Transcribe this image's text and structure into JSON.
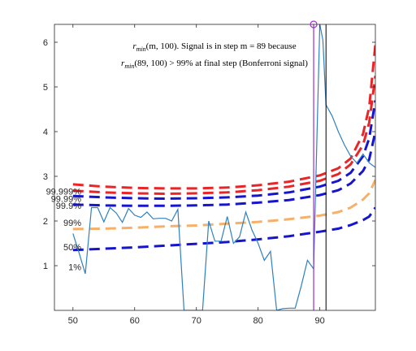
{
  "chart_data": {
    "type": "line",
    "title_lines": [
      [
        "r",
        "min",
        "(m, 100). Signal is in step m = 89 because"
      ],
      [
        "r",
        "min",
        "(89, 100) > 99% at final step (Bonferroni signal)"
      ]
    ],
    "xlim": [
      47,
      99
    ],
    "ylim": [
      0,
      6.4
    ],
    "xticks": [
      50,
      60,
      70,
      80,
      90
    ],
    "yticks": [
      1,
      2,
      3,
      4,
      5,
      6
    ],
    "grid": false,
    "colors": {
      "signal": "#2f80c0",
      "band_red": "#e8262a",
      "band_blue": "#1515d0",
      "band_orange": "#f6b06a",
      "marker": "#9b30d0",
      "vline_black": "#000000"
    },
    "band_labels": [
      {
        "text": "99.999%",
        "y": 2.66
      },
      {
        "text": "99.99%",
        "y": 2.5
      },
      {
        "text": "99.9%",
        "y": 2.35
      },
      {
        "text": "99%",
        "y": 1.96
      },
      {
        "text": "50%",
        "y": 1.42
      },
      {
        "text": "1%",
        "y": 0.97
      }
    ],
    "bands": [
      {
        "color": "band_red",
        "points": [
          [
            50,
            2.82
          ],
          [
            55,
            2.77
          ],
          [
            60,
            2.74
          ],
          [
            65,
            2.73
          ],
          [
            70,
            2.73
          ],
          [
            75,
            2.75
          ],
          [
            80,
            2.8
          ],
          [
            85,
            2.88
          ],
          [
            90,
            3.02
          ],
          [
            93,
            3.18
          ],
          [
            95,
            3.4
          ],
          [
            97,
            3.95
          ],
          [
            98,
            4.55
          ],
          [
            99,
            5.95
          ]
        ]
      },
      {
        "color": "band_red",
        "points": [
          [
            50,
            2.68
          ],
          [
            55,
            2.64
          ],
          [
            60,
            2.62
          ],
          [
            65,
            2.61
          ],
          [
            70,
            2.62
          ],
          [
            75,
            2.64
          ],
          [
            80,
            2.69
          ],
          [
            85,
            2.77
          ],
          [
            90,
            2.9
          ],
          [
            93,
            3.05
          ],
          [
            95,
            3.27
          ],
          [
            97,
            3.7
          ],
          [
            98,
            4.2
          ],
          [
            99,
            5.25
          ]
        ]
      },
      {
        "color": "band_blue",
        "points": [
          [
            50,
            2.56
          ],
          [
            55,
            2.53
          ],
          [
            60,
            2.51
          ],
          [
            65,
            2.5
          ],
          [
            70,
            2.51
          ],
          [
            75,
            2.53
          ],
          [
            80,
            2.57
          ],
          [
            85,
            2.64
          ],
          [
            90,
            2.77
          ],
          [
            93,
            2.9
          ],
          [
            95,
            3.08
          ],
          [
            97,
            3.45
          ],
          [
            98,
            3.85
          ],
          [
            99,
            4.7
          ]
        ]
      },
      {
        "color": "band_blue",
        "points": [
          [
            50,
            2.37
          ],
          [
            55,
            2.35
          ],
          [
            60,
            2.34
          ],
          [
            65,
            2.34
          ],
          [
            70,
            2.35
          ],
          [
            75,
            2.37
          ],
          [
            80,
            2.41
          ],
          [
            85,
            2.47
          ],
          [
            90,
            2.58
          ],
          [
            93,
            2.69
          ],
          [
            95,
            2.84
          ],
          [
            97,
            3.12
          ],
          [
            98,
            3.38
          ],
          [
            99,
            4.0
          ]
        ]
      },
      {
        "color": "band_orange",
        "points": [
          [
            50,
            1.82
          ],
          [
            55,
            1.83
          ],
          [
            60,
            1.85
          ],
          [
            65,
            1.88
          ],
          [
            70,
            1.9
          ],
          [
            75,
            1.94
          ],
          [
            80,
            1.98
          ],
          [
            85,
            2.04
          ],
          [
            90,
            2.12
          ],
          [
            93,
            2.2
          ],
          [
            95,
            2.3
          ],
          [
            97,
            2.48
          ],
          [
            98,
            2.62
          ],
          [
            99,
            2.92
          ]
        ]
      },
      {
        "color": "band_blue",
        "points": [
          [
            50,
            1.35
          ],
          [
            55,
            1.38
          ],
          [
            60,
            1.41
          ],
          [
            65,
            1.45
          ],
          [
            70,
            1.49
          ],
          [
            75,
            1.53
          ],
          [
            80,
            1.59
          ],
          [
            85,
            1.66
          ],
          [
            90,
            1.76
          ],
          [
            93,
            1.83
          ],
          [
            95,
            1.91
          ],
          [
            97,
            2.02
          ],
          [
            98,
            2.1
          ],
          [
            99,
            2.3
          ]
        ]
      }
    ],
    "signal": [
      [
        50,
        1.72
      ],
      [
        51,
        1.28
      ],
      [
        52,
        0.82
      ],
      [
        53,
        2.3
      ],
      [
        54,
        2.3
      ],
      [
        55,
        1.98
      ],
      [
        56,
        2.3
      ],
      [
        57,
        2.18
      ],
      [
        58,
        1.97
      ],
      [
        59,
        2.28
      ],
      [
        60,
        2.13
      ],
      [
        61,
        2.08
      ],
      [
        62,
        2.2
      ],
      [
        63,
        2.05
      ],
      [
        64,
        2.06
      ],
      [
        65,
        2.06
      ],
      [
        66,
        2.0
      ],
      [
        67,
        2.26
      ],
      [
        68,
        0.0
      ],
      [
        69,
        0.0
      ],
      [
        70,
        0.0
      ],
      [
        71,
        0.0
      ],
      [
        72,
        2.0
      ],
      [
        73,
        1.55
      ],
      [
        74,
        1.55
      ],
      [
        75,
        2.1
      ],
      [
        76,
        1.5
      ],
      [
        77,
        1.65
      ],
      [
        78,
        2.2
      ],
      [
        79,
        1.8
      ],
      [
        80,
        1.5
      ],
      [
        81,
        1.12
      ],
      [
        82,
        1.32
      ],
      [
        83,
        0.0
      ],
      [
        84,
        0.04
      ],
      [
        85,
        0.05
      ],
      [
        86,
        0.05
      ],
      [
        87,
        0.55
      ],
      [
        88,
        1.12
      ],
      [
        89,
        0.93
      ],
      [
        90,
        6.4
      ],
      [
        90.5,
        6.05
      ],
      [
        91,
        4.6
      ],
      [
        92,
        4.35
      ],
      [
        93,
        4.0
      ],
      [
        94,
        3.7
      ],
      [
        95,
        3.45
      ],
      [
        96,
        3.3
      ],
      [
        97,
        3.5
      ],
      [
        98,
        3.3
      ],
      [
        99,
        3.2
      ]
    ],
    "marker_point": [
      89,
      6.4
    ],
    "signal_vline_x": 89,
    "black_vline_x": 91
  }
}
